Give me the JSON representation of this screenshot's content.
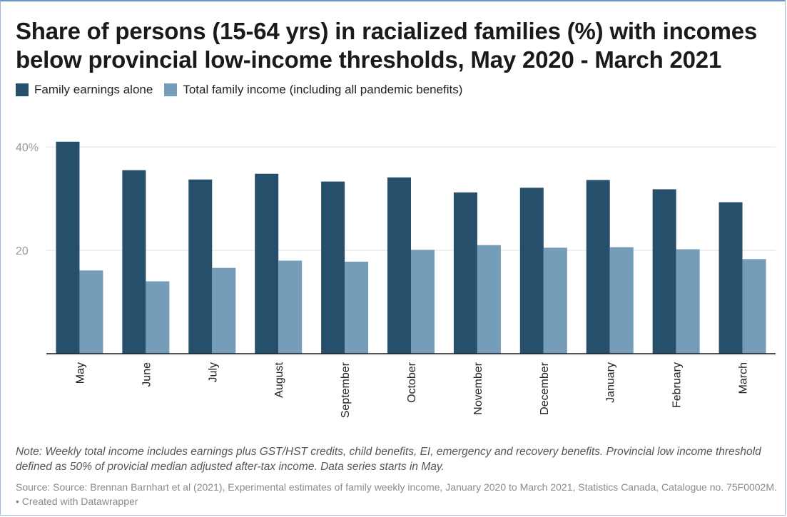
{
  "title": "Share of persons (15-64 yrs) in racialized families (%) with incomes below provincial low-income thresholds, May 2020 - March 2021",
  "legend": [
    {
      "label": "Family earnings alone",
      "color": "#264f6b"
    },
    {
      "label": "Total family income (including all pandemic benefits)",
      "color": "#759cb9"
    }
  ],
  "note": "Note: Weekly total income includes earnings plus GST/HST credits, child benefits, EI, emergency and recovery benefits. Provincial low income threshold defined as 50% of provicial median adjusted after-tax income. Data series starts in May.",
  "source": "Source: Source: Brennan Barnhart et al (2021), Experimental estimates of family weekly income, January 2020 to March 2021, Statistics Canada, Catalogue no. 75F0002M. • Created with Datawrapper",
  "chart_data": {
    "type": "bar",
    "title": "Share of persons (15-64 yrs) in racialized families (%) with incomes below provincial low-income thresholds, May 2020 - March 2021",
    "categories": [
      "May",
      "June",
      "July",
      "August",
      "September",
      "October",
      "November",
      "December",
      "January",
      "February",
      "March"
    ],
    "series": [
      {
        "name": "Family earnings alone",
        "color": "#264f6b",
        "values": [
          41.0,
          35.5,
          33.7,
          34.8,
          33.3,
          34.1,
          31.2,
          32.1,
          33.6,
          31.8,
          29.3
        ]
      },
      {
        "name": "Total family income (including all pandemic benefits)",
        "color": "#759cb9",
        "values": [
          16.1,
          14.0,
          16.6,
          18.0,
          17.8,
          20.1,
          21.0,
          20.5,
          20.6,
          20.2,
          18.3
        ]
      }
    ],
    "yticks": [
      {
        "value": 20,
        "label": "20"
      },
      {
        "value": 40,
        "label": "40%"
      }
    ],
    "ylim": [
      0,
      40
    ],
    "xlabel": "",
    "ylabel": "",
    "grid": true,
    "legend_position": "top-left"
  }
}
